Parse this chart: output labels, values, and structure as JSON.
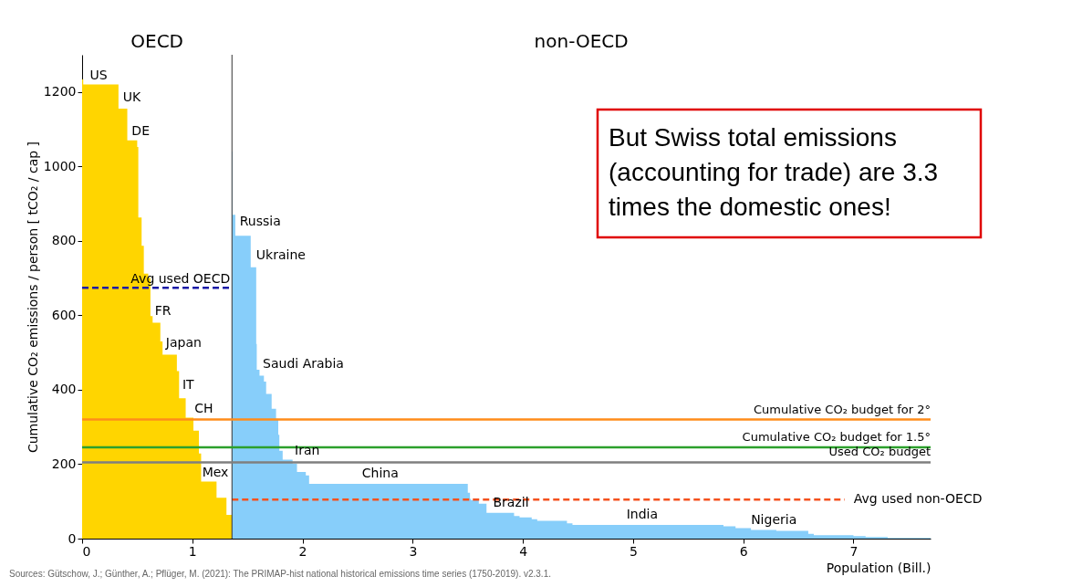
{
  "chart_data": {
    "type": "area",
    "xlabel": "Population (Bill.)",
    "ylabel": "Cumulative CO₂ emissions / person [ tCO₂ / cap ]",
    "xlim": [
      0,
      7.7
    ],
    "xticks": [
      0,
      1,
      2,
      3,
      4,
      5,
      6,
      7
    ],
    "ylim": [
      0,
      1300
    ],
    "yticks": [
      0,
      200,
      400,
      600,
      800,
      1000,
      1200
    ],
    "grid": false,
    "series": [
      {
        "color": "#ffd500",
        "x": [
          0,
          0.01,
          0.01,
          0.33,
          0.33,
          0.41,
          0.41,
          0.5,
          0.5,
          0.51,
          0.51,
          0.54,
          0.54,
          0.56,
          0.56,
          0.6,
          0.6,
          0.62,
          0.62,
          0.64,
          0.64,
          0.71,
          0.71,
          0.73,
          0.73,
          0.86,
          0.86,
          0.88,
          0.88,
          0.94,
          0.94,
          1.01,
          1.01,
          1.06,
          1.06,
          1.08,
          1.08,
          1.22,
          1.22,
          1.31,
          1.31,
          1.36
        ],
        "values": [
          1234,
          1234,
          1220,
          1220,
          1155,
          1155,
          1070,
          1070,
          1052,
          1052,
          863,
          863,
          787,
          787,
          712,
          712,
          700,
          700,
          598,
          598,
          580,
          580,
          530,
          530,
          494,
          494,
          450,
          450,
          377,
          377,
          325,
          325,
          290,
          290,
          229,
          229,
          153,
          153,
          110,
          110,
          64,
          64
        ]
      },
      {
        "color": "#87cefa",
        "x": [
          1.36,
          1.365,
          1.365,
          1.39,
          1.39,
          1.53,
          1.53,
          1.58,
          1.58,
          1.585,
          1.585,
          1.61,
          1.61,
          1.65,
          1.65,
          1.67,
          1.67,
          1.72,
          1.72,
          1.76,
          1.76,
          1.78,
          1.78,
          1.79,
          1.79,
          1.82,
          1.82,
          1.91,
          1.91,
          1.95,
          1.95,
          2.03,
          2.03,
          2.06,
          2.06,
          3.5,
          3.5,
          3.52,
          3.52,
          3.53,
          3.53,
          3.6,
          3.6,
          3.67,
          3.67,
          3.92,
          3.92,
          3.97,
          3.97,
          4.08,
          4.08,
          4.13,
          4.13,
          4.4,
          4.4,
          4.45,
          4.45,
          5.82,
          5.82,
          5.93,
          5.93,
          6.07,
          6.07,
          6.3,
          6.3,
          6.59,
          6.59,
          6.64,
          6.64,
          7.0,
          7.0,
          7.11,
          7.11,
          7.31,
          7.31,
          7.7
        ],
        "values": [
          1040,
          1040,
          870,
          870,
          814,
          814,
          729,
          729,
          523,
          523,
          454,
          454,
          438,
          438,
          422,
          422,
          389,
          389,
          349,
          349,
          322,
          322,
          279,
          279,
          236,
          236,
          212,
          212,
          201,
          201,
          179,
          179,
          170,
          170,
          147,
          147,
          123,
          123,
          107,
          107,
          103,
          103,
          94,
          94,
          69,
          69,
          61,
          61,
          57,
          57,
          52,
          52,
          48,
          48,
          41,
          41,
          37,
          37,
          33,
          33,
          28,
          28,
          23,
          23,
          21,
          21,
          13,
          13,
          9,
          9,
          7,
          7,
          4,
          4,
          2,
          2
        ]
      },
      {
        "type": "line",
        "name": "Avg used OECD",
        "color": "#1a1aa6",
        "line_style": "dashed",
        "x": [
          0,
          1.36
        ],
        "values": [
          674,
          674
        ]
      },
      {
        "type": "line",
        "name": "Avg used non-OECD",
        "color": "#f4511e",
        "line_style": "dashed",
        "x": [
          1.36,
          6.92
        ],
        "values": [
          105,
          105
        ]
      }
    ],
    "ref_lines": [
      {
        "axis": "x",
        "value": 1.36,
        "color": "#333333"
      },
      {
        "axis": "y",
        "value": 320,
        "label": "Cumulative CO₂ budget for 2°",
        "color": "#ff8c1a"
      },
      {
        "axis": "y",
        "value": 245,
        "label": "Cumulative CO₂ budget for 1.5°",
        "color": "#2ca02c"
      },
      {
        "axis": "y",
        "value": 205,
        "label": "Used CO₂ budget",
        "color": "#7f7f7f"
      }
    ],
    "annotations": [
      "OECD",
      "non-OECD",
      {
        "text": "US",
        "x": 0.07,
        "y": 1220
      },
      {
        "text": "UK",
        "x": 0.37,
        "y": 1160
      },
      {
        "text": "DE",
        "x": 0.45,
        "y": 1070
      },
      {
        "text": "FR",
        "x": 0.66,
        "y": 586
      },
      {
        "text": "Japan",
        "x": 0.76,
        "y": 500
      },
      {
        "text": "IT",
        "x": 0.91,
        "y": 388
      },
      {
        "text": "CH",
        "x": 1.02,
        "y": 325
      },
      {
        "text": "Mex",
        "x": 1.09,
        "y": 153
      },
      {
        "text": "Russia",
        "x": 1.43,
        "y": 826
      },
      {
        "text": "Ukraine",
        "x": 1.58,
        "y": 735
      },
      {
        "text": "Saudi Arabia",
        "x": 1.64,
        "y": 444
      },
      {
        "text": "Iran",
        "x": 1.93,
        "y": 212
      },
      {
        "text": "China",
        "x": 2.54,
        "y": 150
      },
      {
        "text": "Brazil",
        "x": 3.73,
        "y": 70
      },
      {
        "text": "India",
        "x": 4.94,
        "y": 40
      },
      {
        "text": "Nigeria",
        "x": 6.07,
        "y": 25
      },
      "But Swiss total emissions\n(accounting for trade) are 3.3\ntimes the domestic ones!",
      "Sources: Gütschow, J.; Günther, A.; Pflüger, M. (2021): The PRIMAP-hist national historical emissions time series (1750-2019). v2.3.1."
    ]
  }
}
